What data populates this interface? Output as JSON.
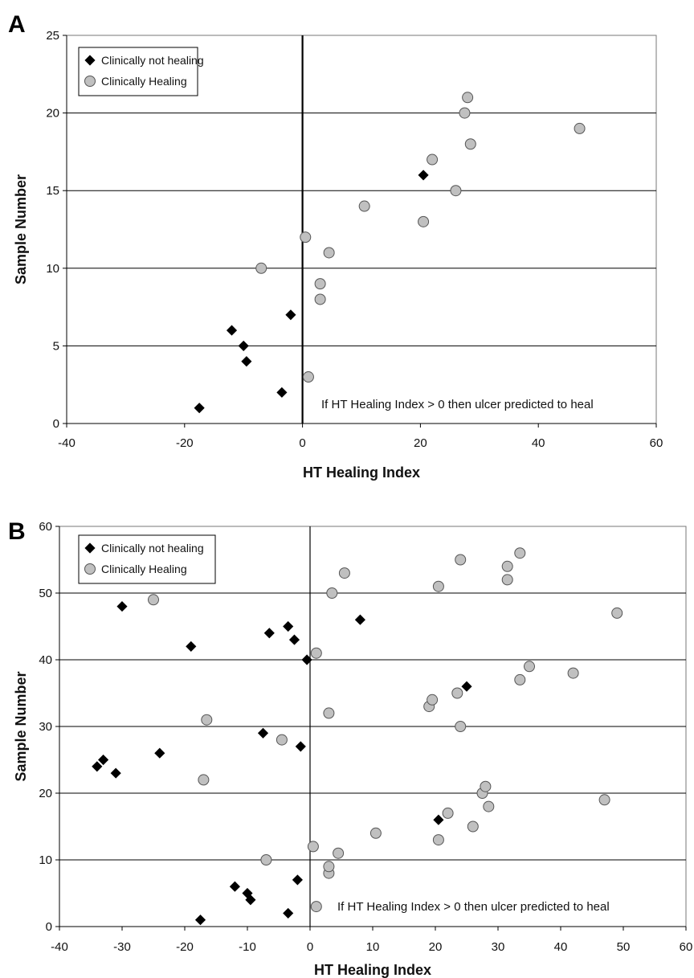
{
  "chart_data": [
    {
      "type": "scatter",
      "panel": "A",
      "xlabel": "HT Healing Index",
      "ylabel": "Sample Number",
      "xlim": [
        -40,
        60
      ],
      "ylim": [
        0,
        25
      ],
      "xticks": [
        -40,
        -20,
        0,
        20,
        40,
        60
      ],
      "yticks": [
        0,
        5,
        10,
        15,
        20,
        25
      ],
      "grid": "horizontal",
      "legend_position": "top-left",
      "annotation": "If HT Healing Index > 0 then ulcer predicted to heal",
      "series": [
        {
          "name": "Clinically not healing",
          "marker": "diamond",
          "color": "#000000",
          "points": [
            [
              -17.5,
              1
            ],
            [
              -3.5,
              2
            ],
            [
              -9.5,
              4
            ],
            [
              -10,
              5
            ],
            [
              -12,
              6
            ],
            [
              -2,
              7
            ],
            [
              20.5,
              16
            ]
          ]
        },
        {
          "name": "Clinically Healing",
          "marker": "circle",
          "color": "#c0c0c0",
          "points": [
            [
              1,
              3
            ],
            [
              3,
              8
            ],
            [
              3,
              9
            ],
            [
              -7,
              10
            ],
            [
              4.5,
              11
            ],
            [
              0.5,
              12
            ],
            [
              20.5,
              13
            ],
            [
              10.5,
              14
            ],
            [
              26,
              15
            ],
            [
              22,
              17
            ],
            [
              28.5,
              18
            ],
            [
              47,
              19
            ],
            [
              27.5,
              20
            ],
            [
              28,
              21
            ]
          ]
        }
      ]
    },
    {
      "type": "scatter",
      "panel": "B",
      "xlabel": "HT Healing Index",
      "ylabel": "Sample Number",
      "xlim": [
        -40,
        60
      ],
      "ylim": [
        0,
        60
      ],
      "xticks": [
        -40,
        -30,
        -20,
        -10,
        0,
        10,
        20,
        30,
        40,
        50,
        60
      ],
      "yticks": [
        0,
        10,
        20,
        30,
        40,
        50,
        60
      ],
      "grid": "horizontal",
      "legend_position": "top-left",
      "annotation": "If HT Healing Index > 0 then ulcer predicted to heal",
      "series": [
        {
          "name": "Clinically not healing",
          "marker": "diamond",
          "color": "#000000",
          "points": [
            [
              -17.5,
              1
            ],
            [
              -3.5,
              2
            ],
            [
              -9.5,
              4
            ],
            [
              -10,
              5
            ],
            [
              -12,
              6
            ],
            [
              -2,
              7
            ],
            [
              20.5,
              16
            ],
            [
              -31,
              23
            ],
            [
              -34,
              24
            ],
            [
              -33,
              25
            ],
            [
              -24,
              26
            ],
            [
              -1.5,
              27
            ],
            [
              -7.5,
              29
            ],
            [
              25,
              36
            ],
            [
              -0.5,
              40
            ],
            [
              -19,
              42
            ],
            [
              -2.5,
              43
            ],
            [
              -6.5,
              44
            ],
            [
              -3.5,
              45
            ],
            [
              8,
              46
            ],
            [
              -30,
              48
            ]
          ]
        },
        {
          "name": "Clinically Healing",
          "marker": "circle",
          "color": "#c0c0c0",
          "points": [
            [
              1,
              3
            ],
            [
              3,
              8
            ],
            [
              3,
              9
            ],
            [
              -7,
              10
            ],
            [
              4.5,
              11
            ],
            [
              0.5,
              12
            ],
            [
              20.5,
              13
            ],
            [
              10.5,
              14
            ],
            [
              26,
              15
            ],
            [
              22,
              17
            ],
            [
              28.5,
              18
            ],
            [
              47,
              19
            ],
            [
              27.5,
              20
            ],
            [
              28,
              21
            ],
            [
              -17,
              22
            ],
            [
              -4.5,
              28
            ],
            [
              24,
              30
            ],
            [
              -16.5,
              31
            ],
            [
              3,
              32
            ],
            [
              19,
              33
            ],
            [
              19.5,
              34
            ],
            [
              23.5,
              35
            ],
            [
              33.5,
              37
            ],
            [
              42,
              38
            ],
            [
              35,
              39
            ],
            [
              1,
              41
            ],
            [
              49,
              47
            ],
            [
              -25,
              49
            ],
            [
              3.5,
              50
            ],
            [
              20.5,
              51
            ],
            [
              31.5,
              52
            ],
            [
              5.5,
              53
            ],
            [
              31.5,
              54
            ],
            [
              24,
              55
            ],
            [
              33.5,
              56
            ]
          ]
        }
      ]
    }
  ]
}
